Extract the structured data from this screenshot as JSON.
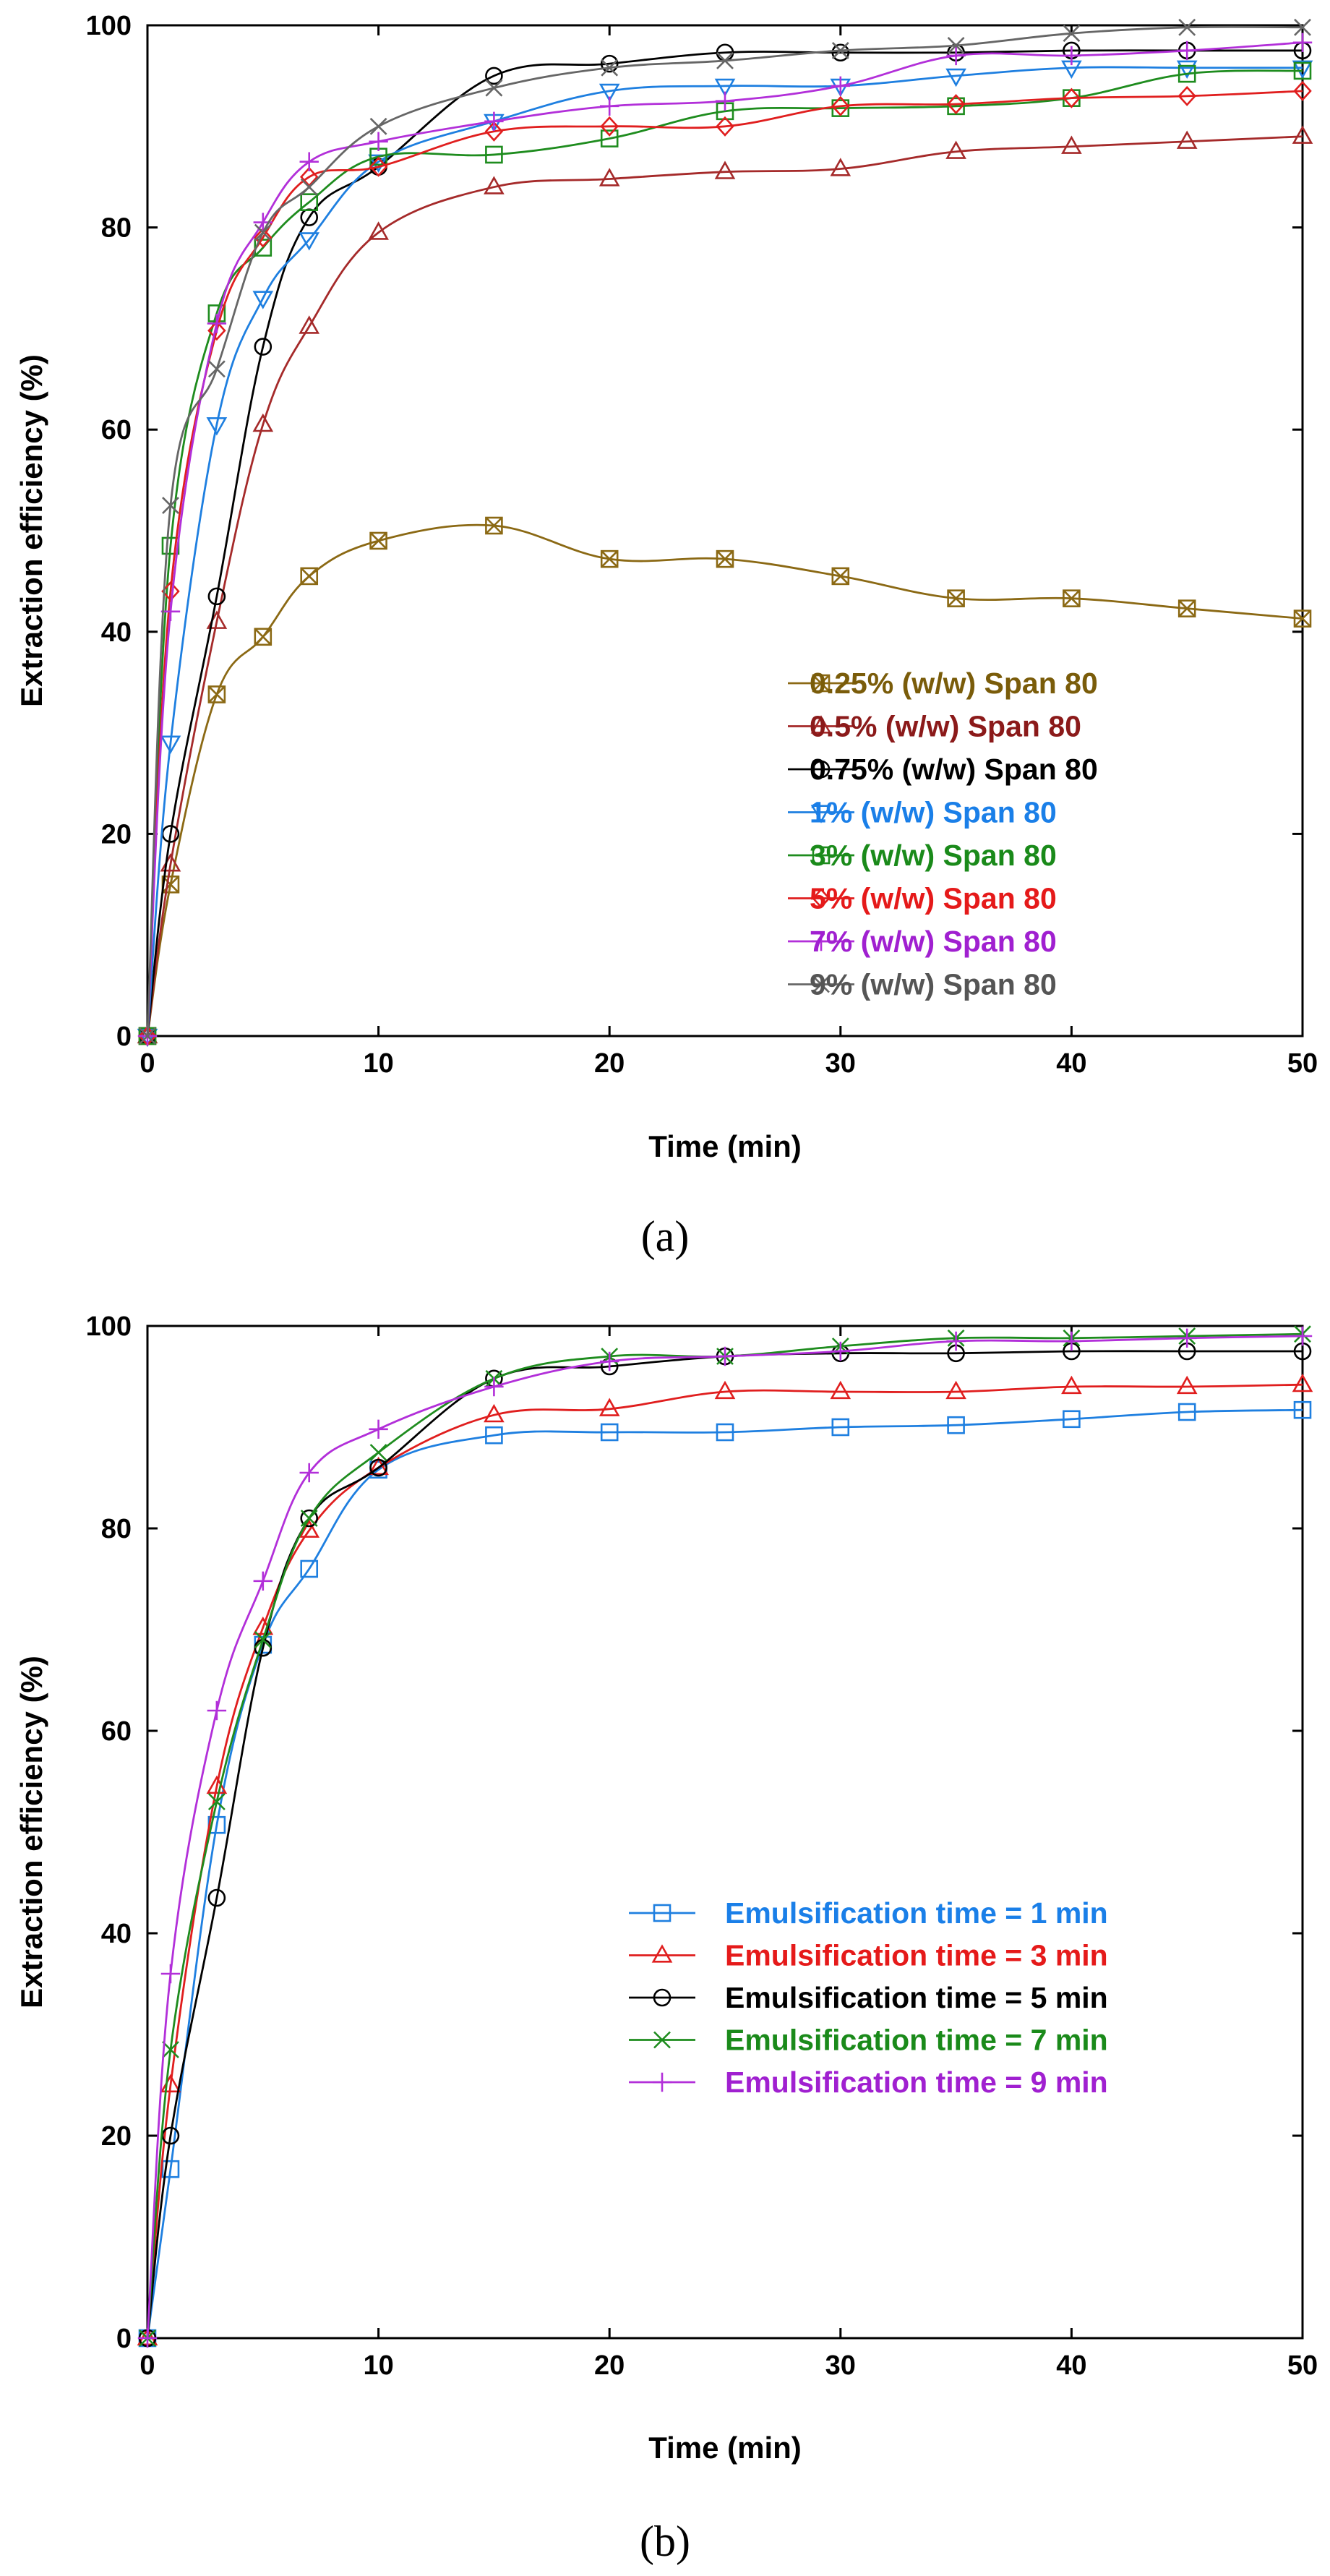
{
  "chart_data": [
    {
      "type": "line",
      "panel_label": "(a)",
      "xlabel": "Time (min)",
      "ylabel": "Extraction efficiency (%)",
      "xlim": [
        0,
        50
      ],
      "ylim": [
        0,
        100
      ],
      "xticks": [
        0,
        10,
        20,
        30,
        40,
        50
      ],
      "yticks": [
        0,
        20,
        40,
        60,
        80,
        100
      ],
      "legend_position": "bottom-right",
      "x": [
        0,
        1,
        3,
        5,
        7,
        10,
        15,
        20,
        25,
        30,
        35,
        40,
        45,
        50
      ],
      "series": [
        {
          "name": "0.25% (w/w) Span 80",
          "color": "#8B6914",
          "label_color": "#7A5C0A",
          "marker": "square-x",
          "values": [
            0,
            15,
            33.8,
            39.5,
            45.5,
            49,
            50.5,
            47.2,
            47.2,
            45.5,
            43.3,
            43.3,
            42.3,
            41.3
          ]
        },
        {
          "name": "0.5% (w/w) Span 80",
          "color": "#A52A2A",
          "label_color": "#8B1A1A",
          "marker": "triangle",
          "values": [
            0,
            17,
            41,
            60.5,
            70.2,
            79.5,
            84,
            84.8,
            85.5,
            85.8,
            87.5,
            88,
            88.5,
            89
          ]
        },
        {
          "name": "0.75% (w/w) Span 80",
          "color": "#000000",
          "label_color": "#000000",
          "marker": "circle",
          "values": [
            0,
            20,
            43.5,
            68.2,
            81,
            86,
            95,
            96.2,
            97.3,
            97.3,
            97.3,
            97.5,
            97.5,
            97.5
          ]
        },
        {
          "name": "1% (w/w) Span 80",
          "color": "#1E7FE0",
          "label_color": "#1A7FE8",
          "marker": "triangle-down",
          "values": [
            0,
            29,
            60.5,
            73,
            78.8,
            86.5,
            90.5,
            93.5,
            94,
            94,
            95,
            95.8,
            95.8,
            95.8
          ]
        },
        {
          "name": "3% (w/w) Span 80",
          "color": "#1E8C1E",
          "label_color": "#1A8A1A",
          "marker": "square",
          "values": [
            0,
            48.5,
            71.5,
            78,
            82.5,
            87,
            87.2,
            88.8,
            91.5,
            91.8,
            92,
            92.8,
            95.2,
            95.5
          ]
        },
        {
          "name": "5% (w/w) Span 80",
          "color": "#E01E1E",
          "label_color": "#E51A1A",
          "marker": "diamond",
          "values": [
            0,
            44,
            69.8,
            79,
            85,
            86,
            89.5,
            90,
            90,
            92,
            92.2,
            92.8,
            93,
            93.5
          ]
        },
        {
          "name": "7% (w/w) Span 80",
          "color": "#B22FD9",
          "label_color": "#A020D0",
          "marker": "plus",
          "values": [
            0,
            42,
            70.5,
            80.5,
            86.5,
            88.5,
            90.5,
            92,
            92.5,
            94,
            97,
            97,
            97.5,
            98.3
          ]
        },
        {
          "name": "9% (w/w) Span 80",
          "color": "#666666",
          "label_color": "#555555",
          "marker": "x",
          "values": [
            0,
            52.5,
            66,
            79.5,
            84,
            90,
            93.8,
            95.8,
            96.5,
            97.5,
            98,
            99.2,
            99.8,
            99.8
          ]
        }
      ]
    },
    {
      "type": "line",
      "panel_label": "(b)",
      "xlabel": "Time (min)",
      "ylabel": "Extraction efficiency (%)",
      "xlim": [
        0,
        50
      ],
      "ylim": [
        0,
        100
      ],
      "xticks": [
        0,
        10,
        20,
        30,
        40,
        50
      ],
      "yticks": [
        0,
        20,
        40,
        60,
        80,
        100
      ],
      "legend_position": "bottom-right",
      "x": [
        0,
        1,
        3,
        5,
        7,
        10,
        15,
        20,
        25,
        30,
        35,
        40,
        45,
        50
      ],
      "series": [
        {
          "name": "Emulsification time = 1 min",
          "color": "#1E7FE0",
          "label_color": "#1A7FE8",
          "marker": "square",
          "values": [
            0,
            16.7,
            50.7,
            68.5,
            76,
            85.8,
            89.2,
            89.5,
            89.5,
            90,
            90.2,
            90.8,
            91.5,
            91.7
          ]
        },
        {
          "name": "Emulsification time = 3 min",
          "color": "#E01E1E",
          "label_color": "#E51A1A",
          "marker": "triangle",
          "values": [
            0,
            25,
            54.5,
            70.2,
            79.8,
            86,
            91.2,
            91.8,
            93.5,
            93.5,
            93.5,
            94,
            94,
            94.2
          ]
        },
        {
          "name": "Emulsification time = 5 min",
          "color": "#000000",
          "label_color": "#000000",
          "marker": "circle",
          "values": [
            0,
            20,
            43.5,
            68.2,
            81,
            86,
            94.8,
            96,
            97,
            97.3,
            97.3,
            97.5,
            97.5,
            97.5
          ]
        },
        {
          "name": "Emulsification time = 7 min",
          "color": "#1E8C1E",
          "label_color": "#1A8A1A",
          "marker": "x",
          "values": [
            0,
            28.5,
            53,
            69,
            81,
            87.5,
            94.8,
            97,
            97,
            98,
            98.8,
            98.8,
            99,
            99.2
          ]
        },
        {
          "name": "Emulsification time = 9 min",
          "color": "#B22FD9",
          "label_color": "#A020D0",
          "marker": "plus",
          "values": [
            0,
            36,
            62,
            74.8,
            85.5,
            89.8,
            94,
            96.5,
            97,
            97.5,
            98.5,
            98.5,
            98.8,
            99
          ]
        }
      ]
    }
  ]
}
